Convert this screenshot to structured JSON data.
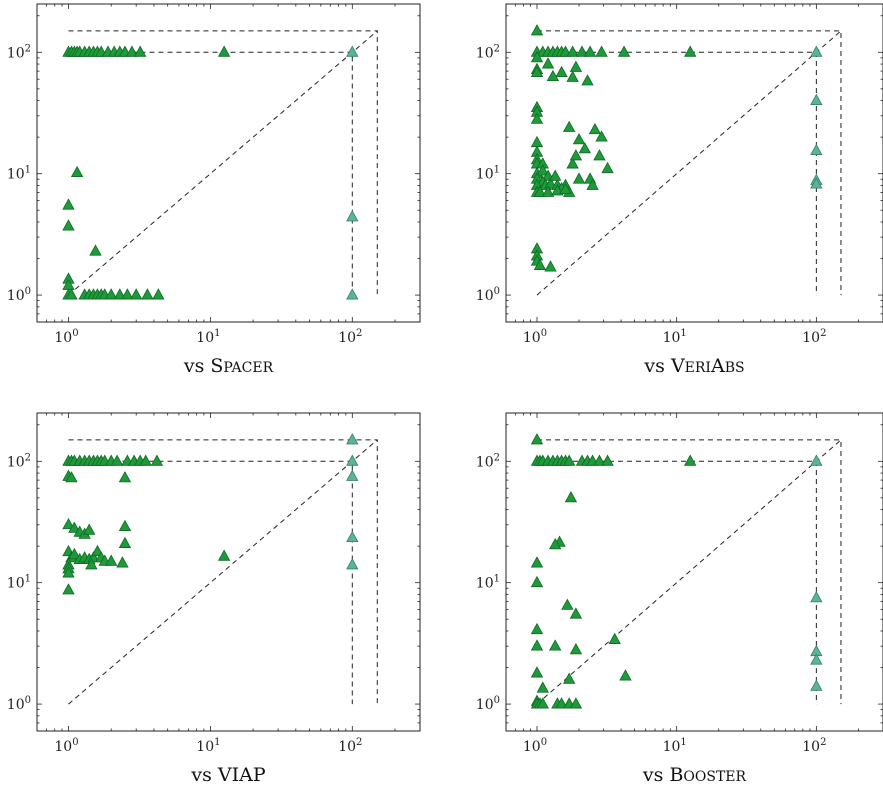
{
  "chart_data": [
    {
      "type": "scatter",
      "caption": "vs Spacer",
      "caption_prefix": "vs",
      "caption_name": "Spacer",
      "caption_smallcaps": true,
      "x_scale": "log",
      "y_scale": "log",
      "xlim": [
        0.6,
        300
      ],
      "ylim": [
        0.6,
        250
      ],
      "x_ticks": [
        {
          "base": "10",
          "exp": "0",
          "value": 1
        },
        {
          "base": "10",
          "exp": "1",
          "value": 10
        },
        {
          "base": "10",
          "exp": "2",
          "value": 100
        }
      ],
      "y_ticks": [
        {
          "base": "10",
          "exp": "0",
          "value": 1
        },
        {
          "base": "10",
          "exp": "1",
          "value": 10
        },
        {
          "base": "10",
          "exp": "2",
          "value": 100
        }
      ],
      "series": [
        {
          "color": "#1f9a3a",
          "points": [
            [
              1,
              100
            ],
            [
              1.05,
              100
            ],
            [
              1.1,
              100
            ],
            [
              1.15,
              100
            ],
            [
              1.2,
              100
            ],
            [
              1.3,
              100
            ],
            [
              1.4,
              100
            ],
            [
              1.5,
              100
            ],
            [
              1.6,
              100
            ],
            [
              1.7,
              100
            ],
            [
              1.9,
              100
            ],
            [
              2.1,
              100
            ],
            [
              2.3,
              100
            ],
            [
              2.5,
              100
            ],
            [
              2.8,
              100
            ],
            [
              3.2,
              100
            ],
            [
              12.5,
              100
            ],
            [
              1.15,
              10.2
            ],
            [
              1,
              5.5
            ],
            [
              1,
              3.7
            ],
            [
              1.55,
              2.3
            ],
            [
              1,
              1.35
            ],
            [
              1,
              1.2
            ],
            [
              1,
              1
            ],
            [
              1.05,
              1
            ],
            [
              1.3,
              1
            ],
            [
              1.4,
              1
            ],
            [
              1.5,
              1
            ],
            [
              1.6,
              1
            ],
            [
              1.7,
              1
            ],
            [
              1.8,
              1
            ],
            [
              2,
              1
            ],
            [
              2.3,
              1
            ],
            [
              2.6,
              1
            ],
            [
              3,
              1
            ],
            [
              3.6,
              1
            ],
            [
              4.3,
              1
            ]
          ]
        },
        {
          "color": "#5cb39a",
          "points": [
            [
              100,
              100
            ],
            [
              100,
              4.4
            ],
            [
              100,
              1
            ]
          ]
        }
      ]
    },
    {
      "type": "scatter",
      "caption": "vs VeriAbs",
      "caption_prefix": "vs",
      "caption_name": "VeriAbs",
      "caption_smallcaps": true,
      "x_scale": "log",
      "y_scale": "log",
      "xlim": [
        0.6,
        300
      ],
      "ylim": [
        0.6,
        250
      ],
      "x_ticks": [
        {
          "base": "10",
          "exp": "0",
          "value": 1
        },
        {
          "base": "10",
          "exp": "1",
          "value": 10
        },
        {
          "base": "10",
          "exp": "2",
          "value": 100
        }
      ],
      "y_ticks": [
        {
          "base": "10",
          "exp": "0",
          "value": 1
        },
        {
          "base": "10",
          "exp": "1",
          "value": 10
        },
        {
          "base": "10",
          "exp": "2",
          "value": 100
        }
      ],
      "series": [
        {
          "color": "#1f9a3a",
          "points": [
            [
              1,
              150
            ],
            [
              1,
              100
            ],
            [
              1.1,
              100
            ],
            [
              1.2,
              100
            ],
            [
              1.3,
              100
            ],
            [
              1.4,
              100
            ],
            [
              1.5,
              100
            ],
            [
              1.6,
              100
            ],
            [
              1.8,
              100
            ],
            [
              2.1,
              100
            ],
            [
              2.4,
              100
            ],
            [
              2.9,
              100
            ],
            [
              4.2,
              100
            ],
            [
              12.5,
              100
            ],
            [
              1,
              90
            ],
            [
              1.2,
              80
            ],
            [
              1,
              72
            ],
            [
              1,
              68
            ],
            [
              1.3,
              63
            ],
            [
              1.5,
              68
            ],
            [
              1.8,
              62
            ],
            [
              1.9,
              75
            ],
            [
              2.3,
              58
            ],
            [
              1,
              35
            ],
            [
              1,
              32
            ],
            [
              1,
              28
            ],
            [
              1,
              18
            ],
            [
              1,
              15
            ],
            [
              1,
              13
            ],
            [
              1,
              12
            ],
            [
              1.1,
              12
            ],
            [
              1,
              10
            ],
            [
              1.1,
              10.5
            ],
            [
              1.2,
              9.5
            ],
            [
              1,
              9
            ],
            [
              1.1,
              8.5
            ],
            [
              1,
              8
            ],
            [
              1.15,
              8
            ],
            [
              1.25,
              8.2
            ],
            [
              1.4,
              8
            ],
            [
              1.35,
              9.5
            ],
            [
              1.6,
              8
            ],
            [
              1.7,
              7
            ],
            [
              1.8,
              12
            ],
            [
              1.9,
              14
            ],
            [
              2,
              9
            ],
            [
              1.7,
              24
            ],
            [
              2,
              19
            ],
            [
              2.2,
              16
            ],
            [
              2.4,
              9
            ],
            [
              2.6,
              23
            ],
            [
              2.9,
              20
            ],
            [
              2.8,
              14
            ],
            [
              3.2,
              11
            ],
            [
              1.5,
              7.5
            ],
            [
              1,
              7
            ],
            [
              1.05,
              7
            ],
            [
              1.2,
              7
            ],
            [
              1.4,
              7.2
            ],
            [
              1.6,
              7.4
            ],
            [
              2.5,
              8
            ],
            [
              1,
              2.4
            ],
            [
              1,
              2.1
            ],
            [
              1,
              1.9
            ],
            [
              1.05,
              1.75
            ],
            [
              1.25,
              1.7
            ]
          ]
        },
        {
          "color": "#5cb39a",
          "points": [
            [
              100,
              100
            ],
            [
              100,
              40
            ],
            [
              100,
              15.5
            ],
            [
              100,
              8.8
            ],
            [
              100,
              8.2
            ]
          ]
        }
      ]
    },
    {
      "type": "scatter",
      "caption": "vs VIAP",
      "caption_prefix": "vs",
      "caption_name": "VIAP",
      "caption_smallcaps": false,
      "x_scale": "log",
      "y_scale": "log",
      "xlim": [
        0.6,
        300
      ],
      "ylim": [
        0.6,
        250
      ],
      "x_ticks": [
        {
          "base": "10",
          "exp": "0",
          "value": 1
        },
        {
          "base": "10",
          "exp": "1",
          "value": 10
        },
        {
          "base": "10",
          "exp": "2",
          "value": 100
        }
      ],
      "y_ticks": [
        {
          "base": "10",
          "exp": "0",
          "value": 1
        },
        {
          "base": "10",
          "exp": "1",
          "value": 10
        },
        {
          "base": "10",
          "exp": "2",
          "value": 100
        }
      ],
      "series": [
        {
          "color": "#1f9a3a",
          "points": [
            [
              1,
              100
            ],
            [
              1.05,
              100
            ],
            [
              1.1,
              100
            ],
            [
              1.2,
              100
            ],
            [
              1.3,
              100
            ],
            [
              1.4,
              100
            ],
            [
              1.5,
              100
            ],
            [
              1.6,
              100
            ],
            [
              1.7,
              100
            ],
            [
              1.8,
              100
            ],
            [
              2,
              100
            ],
            [
              2.2,
              100
            ],
            [
              2.6,
              100
            ],
            [
              2.9,
              100
            ],
            [
              3.2,
              100
            ],
            [
              3.5,
              100
            ],
            [
              4.2,
              100
            ],
            [
              1,
              75
            ],
            [
              1.05,
              73
            ],
            [
              2.5,
              73
            ],
            [
              1,
              30
            ],
            [
              1.1,
              28
            ],
            [
              1.2,
              26
            ],
            [
              1.3,
              25
            ],
            [
              1.4,
              27
            ],
            [
              2.5,
              29
            ],
            [
              2.5,
              21
            ],
            [
              1,
              18
            ],
            [
              1.05,
              16
            ],
            [
              1.1,
              17
            ],
            [
              1.2,
              15.5
            ],
            [
              1.3,
              16
            ],
            [
              1.4,
              15.5
            ],
            [
              1.5,
              16
            ],
            [
              1.6,
              18
            ],
            [
              1.7,
              16
            ],
            [
              1.8,
              15
            ],
            [
              1.45,
              14
            ],
            [
              2,
              15
            ],
            [
              2.4,
              14.5
            ],
            [
              1,
              14
            ],
            [
              1,
              13
            ],
            [
              1,
              12
            ],
            [
              1,
              8.7
            ],
            [
              12.5,
              16.5
            ]
          ]
        },
        {
          "color": "#5cb39a",
          "points": [
            [
              100,
              150
            ],
            [
              100,
              100
            ],
            [
              100,
              75
            ],
            [
              100,
              23.5
            ],
            [
              100,
              14
            ]
          ]
        }
      ]
    },
    {
      "type": "scatter",
      "caption": "vs Booster",
      "caption_prefix": "vs",
      "caption_name": "Booster",
      "caption_smallcaps": true,
      "x_scale": "log",
      "y_scale": "log",
      "xlim": [
        0.6,
        300
      ],
      "ylim": [
        0.6,
        250
      ],
      "x_ticks": [
        {
          "base": "10",
          "exp": "0",
          "value": 1
        },
        {
          "base": "10",
          "exp": "1",
          "value": 10
        },
        {
          "base": "10",
          "exp": "2",
          "value": 100
        }
      ],
      "y_ticks": [
        {
          "base": "10",
          "exp": "0",
          "value": 1
        },
        {
          "base": "10",
          "exp": "1",
          "value": 10
        },
        {
          "base": "10",
          "exp": "2",
          "value": 100
        }
      ],
      "series": [
        {
          "color": "#1f9a3a",
          "points": [
            [
              1,
              150
            ],
            [
              1,
              100
            ],
            [
              1.05,
              100
            ],
            [
              1.1,
              100
            ],
            [
              1.2,
              100
            ],
            [
              1.3,
              100
            ],
            [
              1.4,
              100
            ],
            [
              1.5,
              100
            ],
            [
              1.6,
              100
            ],
            [
              1.7,
              100
            ],
            [
              2.1,
              100
            ],
            [
              2.3,
              100
            ],
            [
              2.5,
              100
            ],
            [
              2.8,
              100
            ],
            [
              3.2,
              100
            ],
            [
              12.5,
              100
            ],
            [
              1.75,
              50
            ],
            [
              1.45,
              21.5
            ],
            [
              1.35,
              20.5
            ],
            [
              1,
              14.5
            ],
            [
              1,
              10
            ],
            [
              1.65,
              6.5
            ],
            [
              1.9,
              5.5
            ],
            [
              1,
              4.1
            ],
            [
              1,
              3
            ],
            [
              1.35,
              3
            ],
            [
              1.9,
              2.8
            ],
            [
              3.6,
              3.4
            ],
            [
              1,
              1.8
            ],
            [
              1.7,
              1.6
            ],
            [
              1.1,
              1.35
            ],
            [
              4.3,
              1.7
            ],
            [
              1,
              1.05
            ],
            [
              1,
              1
            ],
            [
              1.05,
              1
            ],
            [
              1.1,
              1
            ],
            [
              1.4,
              1
            ],
            [
              1.5,
              1
            ],
            [
              1.7,
              1
            ],
            [
              1.9,
              1
            ]
          ]
        },
        {
          "color": "#5cb39a",
          "points": [
            [
              100,
              100
            ],
            [
              100,
              7.5
            ],
            [
              100,
              2.7
            ],
            [
              100,
              2.3
            ],
            [
              100,
              1.4
            ]
          ]
        }
      ]
    }
  ]
}
